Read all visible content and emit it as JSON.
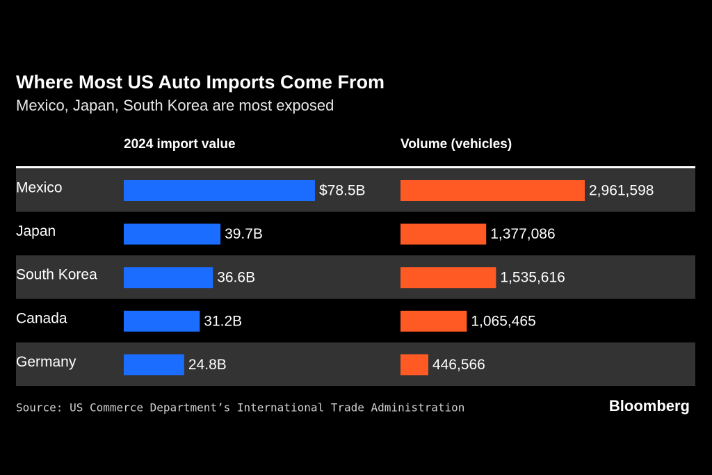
{
  "chart_data": {
    "type": "bar",
    "title": "Where Most US Auto Imports Come From",
    "subtitle": "Mexico, Japan, South Korea are most exposed",
    "categories": [
      "Mexico",
      "Japan",
      "South Korea",
      "Canada",
      "Germany"
    ],
    "series": [
      {
        "name": "2024 import value",
        "color": "#1a6dff",
        "values": [
          78.5,
          39.7,
          36.6,
          31.2,
          24.8
        ],
        "value_labels": [
          "$78.5B",
          "39.7B",
          "36.6B",
          "31.2B",
          "24.8B"
        ]
      },
      {
        "name": "Volume (vehicles)",
        "color": "#ff5a24",
        "values": [
          2961598,
          1377086,
          1535616,
          1065465,
          446566
        ],
        "value_labels": [
          "2,961,598",
          "1,377,086",
          "1,535,616",
          "1,065,465",
          "446,566"
        ]
      }
    ],
    "source": "Source: US Commerce Department’s International Trade Administration",
    "brand": "Bloomberg"
  }
}
